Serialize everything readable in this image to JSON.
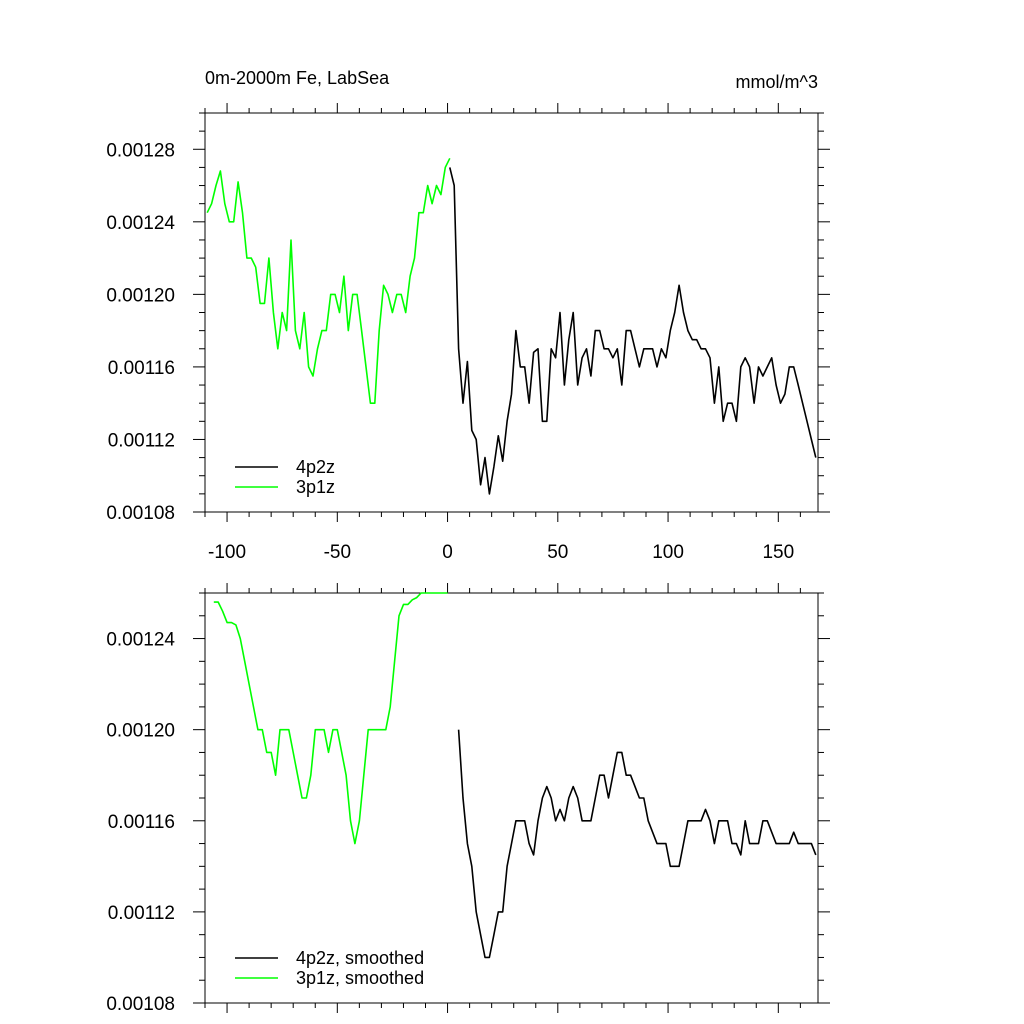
{
  "chart_data": [
    {
      "type": "line",
      "title": "0m-2000m Fe, LabSea",
      "subtitle": "mmol/m^3",
      "xlim": [
        -110,
        168
      ],
      "ylim": [
        0.00108,
        0.0013
      ],
      "x_ticks": [
        -100,
        -50,
        0,
        50,
        100,
        150
      ],
      "x_tick_labels": [
        "-100",
        "-50",
        "0",
        "50",
        "100",
        "150"
      ],
      "y_ticks": [
        0.00108,
        0.00112,
        0.00116,
        0.0012,
        0.00124,
        0.00128
      ],
      "y_tick_labels": [
        "0.00108",
        "0.00112",
        "0.00116",
        "0.00120",
        "0.00124",
        "0.00128"
      ],
      "grid": false,
      "legend_position": "bottom-left",
      "series": [
        {
          "name": "4p2z",
          "color": "#000000",
          "x": [
            1,
            3,
            5,
            7,
            9,
            11,
            13,
            15,
            17,
            19,
            21,
            23,
            25,
            27,
            29,
            31,
            33,
            35,
            37,
            39,
            41,
            43,
            45,
            47,
            49,
            51,
            53,
            55,
            57,
            59,
            61,
            63,
            65,
            67,
            69,
            71,
            73,
            75,
            77,
            79,
            81,
            83,
            85,
            87,
            89,
            91,
            93,
            95,
            97,
            99,
            101,
            103,
            105,
            107,
            109,
            111,
            113,
            115,
            117,
            119,
            121,
            123,
            125,
            127,
            129,
            131,
            133,
            135,
            137,
            139,
            141,
            143,
            145,
            147,
            149,
            151,
            153,
            155,
            157,
            159,
            161,
            163,
            165,
            167
          ],
          "y": [
            0.00127,
            0.00126,
            0.00117,
            0.00114,
            0.001163,
            0.001125,
            0.00112,
            0.001095,
            0.00111,
            0.00109,
            0.001105,
            0.001122,
            0.001108,
            0.00113,
            0.001145,
            0.00118,
            0.00116,
            0.00116,
            0.00114,
            0.001168,
            0.00117,
            0.00113,
            0.00113,
            0.00117,
            0.001165,
            0.00119,
            0.00115,
            0.001175,
            0.00119,
            0.00115,
            0.001165,
            0.00117,
            0.001155,
            0.00118,
            0.00118,
            0.00117,
            0.00117,
            0.001165,
            0.00117,
            0.00115,
            0.00118,
            0.00118,
            0.00117,
            0.00116,
            0.00117,
            0.00117,
            0.00117,
            0.00116,
            0.00117,
            0.001165,
            0.00118,
            0.00119,
            0.001205,
            0.00119,
            0.00118,
            0.001175,
            0.001175,
            0.00117,
            0.00117,
            0.001165,
            0.00114,
            0.00116,
            0.00113,
            0.00114,
            0.00114,
            0.00113,
            0.00116,
            0.001165,
            0.00116,
            0.00114,
            0.00116,
            0.001155,
            0.00116,
            0.001165,
            0.00115,
            0.00114,
            0.001145,
            0.00116,
            0.00116,
            0.00115,
            0.00114,
            0.00113,
            0.00112,
            0.00111
          ]
        },
        {
          "name": "3p1z",
          "color": "#00ff00",
          "x": [
            -109,
            -107,
            -105,
            -103,
            -101,
            -99,
            -97,
            -95,
            -93,
            -91,
            -89,
            -87,
            -85,
            -83,
            -81,
            -79,
            -77,
            -75,
            -73,
            -71,
            -69,
            -67,
            -65,
            -63,
            -61,
            -59,
            -57,
            -55,
            -53,
            -51,
            -49,
            -47,
            -45,
            -43,
            -41,
            -39,
            -37,
            -35,
            -33,
            -31,
            -29,
            -27,
            -25,
            -23,
            -21,
            -19,
            -17,
            -15,
            -13,
            -11,
            -9,
            -7,
            -5,
            -3,
            -1,
            1
          ],
          "y": [
            0.001245,
            0.00125,
            0.00126,
            0.001268,
            0.00125,
            0.00124,
            0.00124,
            0.001262,
            0.001245,
            0.00122,
            0.00122,
            0.001215,
            0.001195,
            0.001195,
            0.00122,
            0.00119,
            0.00117,
            0.00119,
            0.00118,
            0.00123,
            0.00118,
            0.00117,
            0.00119,
            0.00116,
            0.001155,
            0.00117,
            0.00118,
            0.00118,
            0.0012,
            0.0012,
            0.00119,
            0.00121,
            0.00118,
            0.0012,
            0.0012,
            0.00118,
            0.00116,
            0.00114,
            0.00114,
            0.00118,
            0.001205,
            0.0012,
            0.00119,
            0.0012,
            0.0012,
            0.00119,
            0.00121,
            0.00122,
            0.001245,
            0.001245,
            0.00126,
            0.00125,
            0.00126,
            0.001255,
            0.00127,
            0.001275
          ]
        }
      ]
    },
    {
      "type": "line",
      "xlim": [
        -110,
        168
      ],
      "ylim": [
        0.00108,
        0.00126
      ],
      "x_ticks": [
        -100,
        -50,
        0,
        50,
        100,
        150
      ],
      "y_ticks": [
        0.00108,
        0.00112,
        0.00116,
        0.0012,
        0.00124
      ],
      "y_tick_labels": [
        "0.00108",
        "0.00112",
        "0.00116",
        "0.00120",
        "0.00124"
      ],
      "grid": false,
      "legend_position": "bottom-left",
      "series": [
        {
          "name": "4p2z, smoothed",
          "color": "#000000",
          "x": [
            5,
            7,
            9,
            11,
            13,
            15,
            17,
            19,
            21,
            23,
            25,
            27,
            29,
            31,
            33,
            35,
            37,
            39,
            41,
            43,
            45,
            47,
            49,
            51,
            53,
            55,
            57,
            59,
            61,
            63,
            65,
            67,
            69,
            71,
            73,
            75,
            77,
            79,
            81,
            83,
            85,
            87,
            89,
            91,
            93,
            95,
            97,
            99,
            101,
            103,
            105,
            107,
            109,
            111,
            113,
            115,
            117,
            119,
            121,
            123,
            125,
            127,
            129,
            131,
            133,
            135,
            137,
            139,
            141,
            143,
            145,
            147,
            149,
            151,
            153,
            155,
            157,
            159,
            161,
            163,
            165,
            167
          ],
          "y": [
            0.0012,
            0.00117,
            0.00115,
            0.00114,
            0.00112,
            0.00111,
            0.0011,
            0.0011,
            0.00111,
            0.00112,
            0.00112,
            0.00114,
            0.00115,
            0.00116,
            0.00116,
            0.00116,
            0.00115,
            0.001145,
            0.00116,
            0.00117,
            0.001175,
            0.00117,
            0.00116,
            0.001165,
            0.00116,
            0.00117,
            0.001175,
            0.00117,
            0.00116,
            0.00116,
            0.00116,
            0.00117,
            0.00118,
            0.00118,
            0.00117,
            0.00118,
            0.00119,
            0.00119,
            0.00118,
            0.00118,
            0.001175,
            0.00117,
            0.00117,
            0.00116,
            0.001155,
            0.00115,
            0.00115,
            0.00115,
            0.00114,
            0.00114,
            0.00114,
            0.00115,
            0.00116,
            0.00116,
            0.00116,
            0.00116,
            0.001165,
            0.00116,
            0.00115,
            0.00116,
            0.00116,
            0.00116,
            0.00115,
            0.00115,
            0.001145,
            0.00116,
            0.00115,
            0.00115,
            0.00115,
            0.00116,
            0.00116,
            0.001155,
            0.00115,
            0.00115,
            0.00115,
            0.00115,
            0.001155,
            0.00115,
            0.00115,
            0.00115,
            0.00115,
            0.001145
          ]
        },
        {
          "name": "3p1z, smoothed",
          "color": "#00ff00",
          "x": [
            -106,
            -104,
            -102,
            -100,
            -98,
            -96,
            -94,
            -92,
            -90,
            -88,
            -86,
            -84,
            -82,
            -80,
            -78,
            -76,
            -74,
            -72,
            -70,
            -68,
            -66,
            -64,
            -62,
            -60,
            -58,
            -56,
            -54,
            -52,
            -50,
            -48,
            -46,
            -44,
            -42,
            -40,
            -38,
            -36,
            -34,
            -32,
            -30,
            -28,
            -26,
            -24,
            -22,
            -20,
            -18,
            -16,
            -14,
            -12,
            -10,
            -8,
            -6,
            -4,
            -2,
            0
          ],
          "y": [
            0.001256,
            0.001256,
            0.001252,
            0.001247,
            0.001247,
            0.001246,
            0.00124,
            0.00123,
            0.00122,
            0.00121,
            0.0012,
            0.0012,
            0.00119,
            0.00119,
            0.00118,
            0.0012,
            0.0012,
            0.0012,
            0.00119,
            0.00118,
            0.00117,
            0.00117,
            0.00118,
            0.0012,
            0.0012,
            0.0012,
            0.00119,
            0.0012,
            0.0012,
            0.00119,
            0.00118,
            0.00116,
            0.00115,
            0.00116,
            0.00118,
            0.0012,
            0.0012,
            0.0012,
            0.0012,
            0.0012,
            0.00121,
            0.00123,
            0.00125,
            0.001255,
            0.001255,
            0.001257,
            0.001258,
            0.00126,
            0.00126,
            0.00126,
            0.00126,
            0.00126,
            0.00126,
            0.00126
          ]
        }
      ]
    }
  ]
}
